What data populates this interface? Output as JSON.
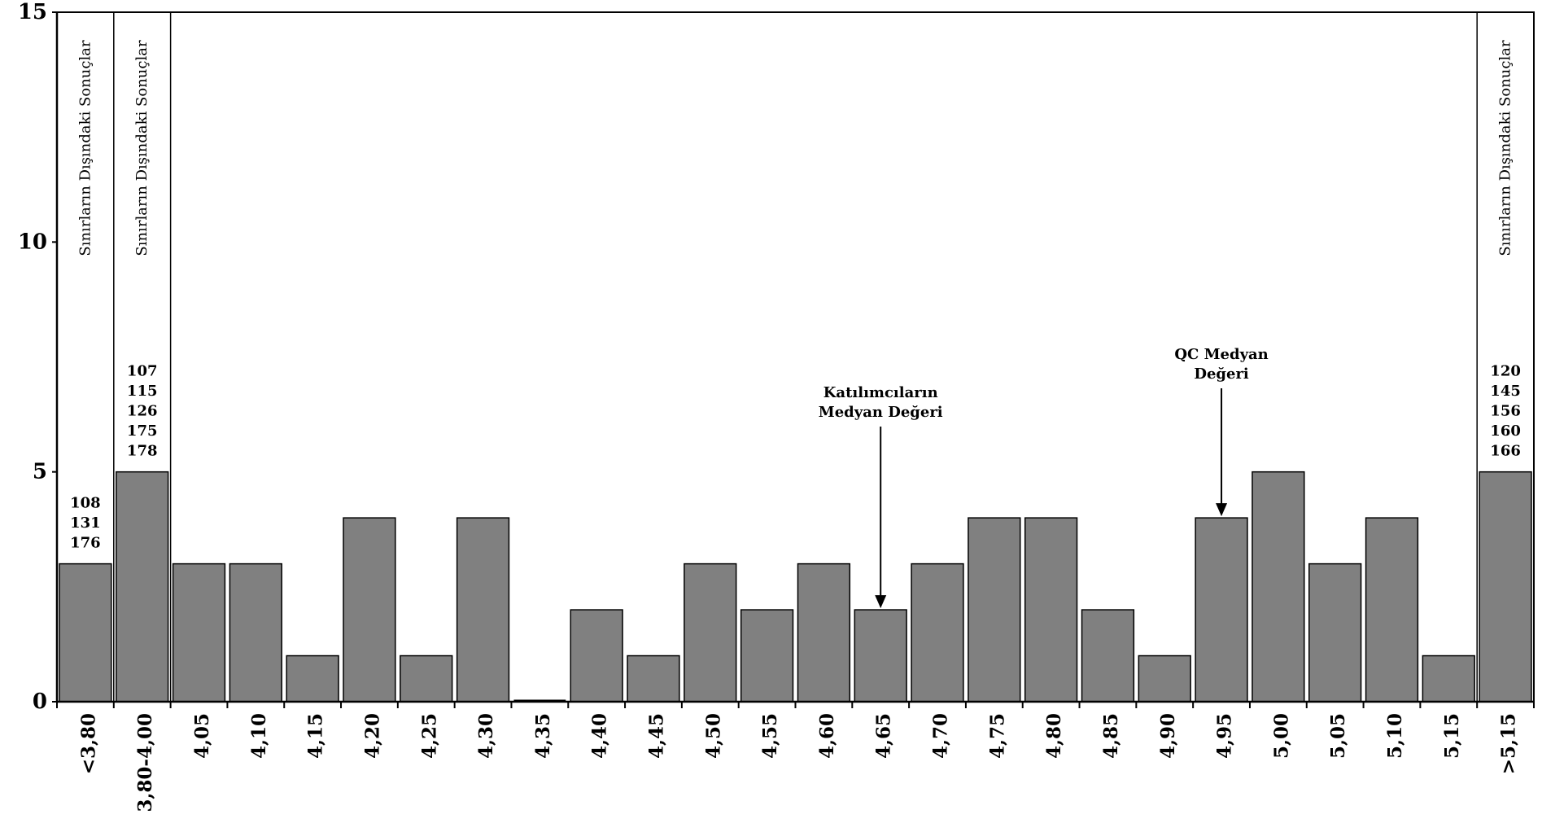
{
  "chart_data": {
    "type": "bar",
    "title": "",
    "xlabel": "",
    "ylabel": "",
    "ylim": [
      0,
      15
    ],
    "yticks": [
      0,
      5,
      10,
      15
    ],
    "grid": false,
    "legend": "none",
    "categories": [
      "<3,80",
      "3,80-4,00",
      "4,05",
      "4,10",
      "4,15",
      "4,20",
      "4,25",
      "4,30",
      "4,35",
      "4,40",
      "4,45",
      "4,50",
      "4,55",
      "4,60",
      "4,65",
      "4,70",
      "4,75",
      "4,80",
      "4,85",
      "4,90",
      "4,95",
      "5,00",
      "5,05",
      "5,10",
      "5,15",
      ">5,15"
    ],
    "values": [
      3,
      5,
      3,
      3,
      1,
      4,
      1,
      4,
      0,
      2,
      1,
      3,
      2,
      3,
      2,
      3,
      4,
      4,
      2,
      1,
      4,
      5,
      3,
      4,
      1,
      5
    ],
    "bar_color": "#808080",
    "out_of_range_bands": [
      {
        "category": "<3,80",
        "label": "Sınırların Dışındaki Sonuçlar",
        "ids": [
          "108",
          "131",
          "176"
        ]
      },
      {
        "category": "3,80-4,00",
        "label": "Sınırların Dışındaki Sonuçlar",
        "ids": [
          "107",
          "115",
          "126",
          "175",
          "178"
        ]
      },
      {
        "category": ">5,15",
        "label": "Sınırların Dışındaki Sonuçlar",
        "ids": [
          "120",
          "145",
          "156",
          "160",
          "166"
        ]
      }
    ],
    "annotations": [
      {
        "category": "4,65",
        "lines": [
          "Katılımcıların",
          "Medyan Değeri"
        ]
      },
      {
        "category": "4,95",
        "lines": [
          "QC Medyan",
          "Değeri"
        ]
      }
    ]
  }
}
